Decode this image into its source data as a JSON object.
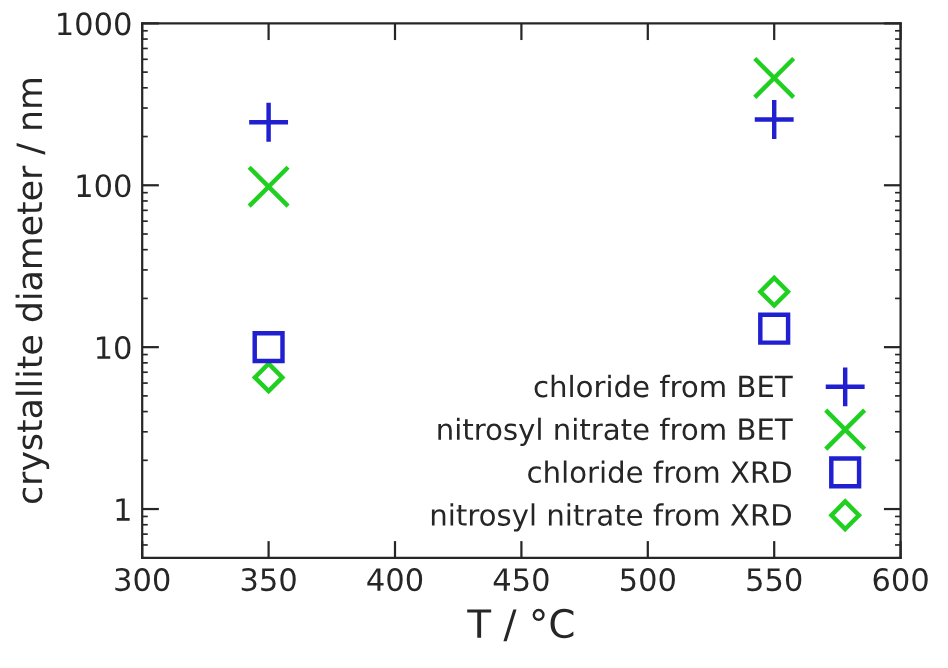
{
  "chart_data": {
    "type": "scatter",
    "xlabel": "T / °C",
    "ylabel": "crystallite diameter / nm",
    "log": "y",
    "xlim": [
      300,
      600
    ],
    "xticks": [
      300,
      350,
      400,
      450,
      500,
      550,
      600
    ],
    "ylim": [
      0.5,
      1000
    ],
    "yticks": [
      1,
      10,
      100,
      1000
    ],
    "grid": false,
    "legend": "bottom right",
    "x": [
      350,
      550
    ],
    "series": [
      {
        "name": "chloride from BET",
        "color": "#2020d0",
        "marker": "plus",
        "values": [
          245,
          255
        ]
      },
      {
        "name": "nitrosyl nitrate from BET",
        "color": "#20d020",
        "marker": "cross",
        "values": [
          98,
          460
        ]
      },
      {
        "name": "chloride from XRD",
        "color": "#2020d0",
        "marker": "square",
        "values": [
          10,
          13
        ]
      },
      {
        "name": "nitrosyl nitrate from XRD",
        "color": "#20d020",
        "marker": "diamond",
        "values": [
          6.5,
          22
        ]
      }
    ]
  }
}
